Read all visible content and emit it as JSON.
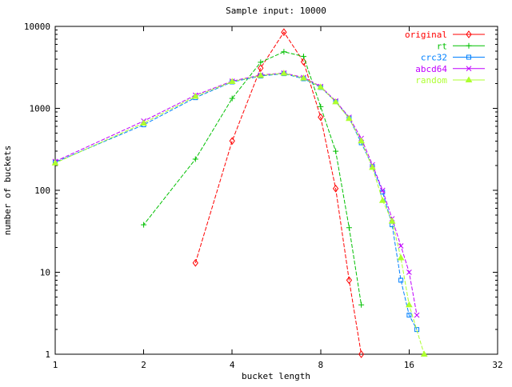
{
  "window": {
    "background": "#ffffff",
    "axis_color": "#000000"
  },
  "chart_data": {
    "type": "line",
    "title": "Sample input: 10000",
    "xlabel": "bucket length",
    "ylabel": "number of buckets",
    "x_scale": "log2",
    "y_scale": "log10",
    "xlim": [
      1,
      32
    ],
    "ylim": [
      1,
      10000
    ],
    "x_ticks": [
      "1",
      "2",
      "4",
      "8",
      "16",
      "32"
    ],
    "y_ticks": [
      "1",
      "10",
      "100",
      "1000",
      "10000"
    ],
    "grid": false,
    "legend_position": "top-right-inside",
    "series": [
      {
        "name": "original",
        "color": "#ff0000",
        "marker": "diamond",
        "points": [
          [
            3,
            13
          ],
          [
            4,
            400
          ],
          [
            5,
            3100
          ],
          [
            6,
            8500
          ],
          [
            7,
            3700
          ],
          [
            8,
            780
          ],
          [
            9,
            105
          ],
          [
            10,
            8
          ],
          [
            11,
            1
          ]
        ]
      },
      {
        "name": "rt",
        "color": "#00c000",
        "marker": "plus",
        "points": [
          [
            2,
            38
          ],
          [
            3,
            240
          ],
          [
            4,
            1320
          ],
          [
            5,
            3650
          ],
          [
            6,
            4900
          ],
          [
            7,
            4300
          ],
          [
            8,
            1050
          ],
          [
            9,
            300
          ],
          [
            10,
            35
          ],
          [
            11,
            4
          ]
        ]
      },
      {
        "name": "crc32",
        "color": "#0080ff",
        "marker": "square",
        "points": [
          [
            1,
            220
          ],
          [
            2,
            630
          ],
          [
            3,
            1350
          ],
          [
            4,
            2100
          ],
          [
            5,
            2480
          ],
          [
            6,
            2650
          ],
          [
            7,
            2300
          ],
          [
            8,
            1800
          ],
          [
            9,
            1210
          ],
          [
            10,
            760
          ],
          [
            11,
            380
          ],
          [
            12,
            195
          ],
          [
            13,
            95
          ],
          [
            14,
            38
          ],
          [
            15,
            8
          ],
          [
            16,
            3
          ],
          [
            17,
            2
          ]
        ]
      },
      {
        "name": "abcd64",
        "color": "#c000ff",
        "marker": "xcross",
        "points": [
          [
            1,
            225
          ],
          [
            2,
            700
          ],
          [
            3,
            1450
          ],
          [
            4,
            2150
          ],
          [
            5,
            2550
          ],
          [
            6,
            2700
          ],
          [
            7,
            2380
          ],
          [
            8,
            1850
          ],
          [
            9,
            1230
          ],
          [
            10,
            780
          ],
          [
            11,
            430
          ],
          [
            12,
            205
          ],
          [
            13,
            100
          ],
          [
            14,
            45
          ],
          [
            15,
            21
          ],
          [
            16,
            10
          ],
          [
            17,
            3
          ]
        ]
      },
      {
        "name": "random",
        "color": "#adff2f",
        "marker": "triangle",
        "points": [
          [
            1,
            215
          ],
          [
            2,
            660
          ],
          [
            3,
            1400
          ],
          [
            4,
            2120
          ],
          [
            5,
            2520
          ],
          [
            6,
            2680
          ],
          [
            7,
            2340
          ],
          [
            8,
            1820
          ],
          [
            9,
            1200
          ],
          [
            10,
            750
          ],
          [
            11,
            400
          ],
          [
            12,
            190
          ],
          [
            13,
            75
          ],
          [
            14,
            42
          ],
          [
            15,
            15
          ],
          [
            16,
            4
          ],
          [
            18,
            1
          ]
        ]
      }
    ]
  }
}
